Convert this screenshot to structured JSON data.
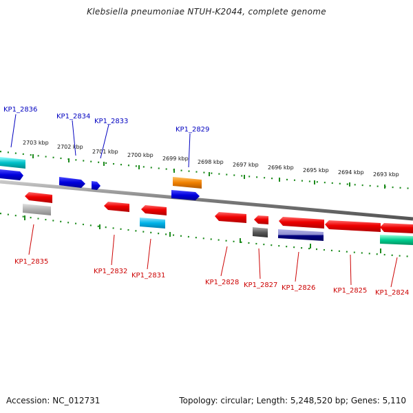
{
  "title": "Klebsiella pneumoniae NTUH-K2044, complete genome",
  "footer": {
    "accession": "Accession: NC_012731",
    "summary": "Topology: circular; Length: 5,248,520 bp; Genes: 5,110"
  },
  "colors": {
    "backbone": "#808080",
    "tick": "#1a8a1a",
    "label_forward": "#0000c0",
    "label_reverse": "#cc0000"
  },
  "scale_ticks": [
    {
      "label": "2703 kbp"
    },
    {
      "label": "2702 kbp"
    },
    {
      "label": "2701 kbp"
    },
    {
      "label": "2700 kbp"
    },
    {
      "label": "2699 kbp"
    },
    {
      "label": "2698 kbp"
    },
    {
      "label": "2697 kbp"
    },
    {
      "label": "2696 kbp"
    },
    {
      "label": "2695 kbp"
    },
    {
      "label": "2694 kbp"
    },
    {
      "label": "2693 kbp"
    }
  ],
  "genes_forward": [
    {
      "id": "KP1_2836",
      "color": "#00b0b0"
    },
    {
      "id": "KP1_2834",
      "color": "#0000e0"
    },
    {
      "id": "KP1_2833",
      "color": "#0000e0"
    },
    {
      "id": "KP1_2829",
      "color": "#f08000"
    }
  ],
  "genes_reverse": [
    {
      "id": "KP1_2835",
      "color": "#a8a8a8"
    },
    {
      "id": "KP1_2832",
      "color": "#ee0000"
    },
    {
      "id": "KP1_2831",
      "color": "#00b0e0"
    },
    {
      "id": "KP1_2828",
      "color": "#ee0000"
    },
    {
      "id": "KP1_2827",
      "color": "#606060"
    },
    {
      "id": "KP1_2826",
      "color": "#000080"
    },
    {
      "id": "KP1_2825",
      "color": "#ee0000"
    },
    {
      "id": "KP1_2824",
      "color": "#00d090"
    }
  ]
}
